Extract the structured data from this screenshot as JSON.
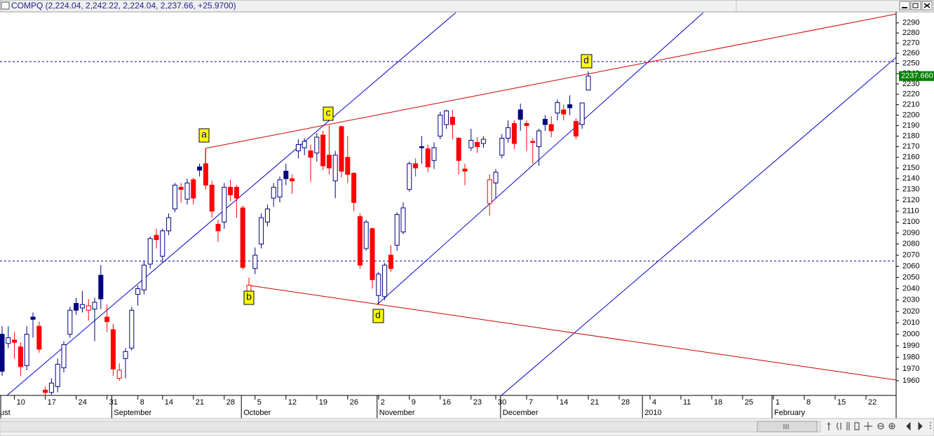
{
  "chart_data": {
    "type": "candlestick",
    "title": "COMPQ (2,224.04, 2,242.22, 2,224.04, 2,237.66, +25.9700)",
    "log_scale": true,
    "ylim": [
      1947.5,
      2301
    ],
    "yticks": [
      1960,
      1970,
      1980,
      1990,
      2000,
      2010,
      2020,
      2030,
      2040,
      2050,
      2060,
      2070,
      2080,
      2090,
      2100,
      2110,
      2120,
      2130,
      2140,
      2150,
      2160,
      2170,
      2180,
      2190,
      2200,
      2210,
      2220,
      2230,
      2240,
      2250,
      2260,
      2270,
      2280,
      2290
    ],
    "colors": {
      "rising": "#000080",
      "falling": "#ff0000",
      "hollow": "#ffffff"
    },
    "last_price": {
      "value": 2237.66,
      "label": "2237.660",
      "color": "#008000"
    },
    "annotations": [
      "a",
      "b",
      "c",
      "d",
      "d"
    ],
    "categories": [
      null,
      null,
      "10",
      null,
      null,
      null,
      null,
      "17",
      null,
      null,
      null,
      null,
      "24",
      null,
      null,
      null,
      null,
      "31",
      null,
      null,
      null,
      null,
      "8",
      null,
      null,
      null,
      "14",
      null,
      null,
      null,
      null,
      "21",
      null,
      null,
      null,
      null,
      "28",
      null,
      null,
      null,
      null,
      "5",
      null,
      null,
      null,
      null,
      "12",
      null,
      null,
      null,
      null,
      "19",
      null,
      null,
      null,
      null,
      "26",
      null,
      null,
      null,
      null,
      "2",
      null,
      null,
      null,
      null,
      "9",
      null,
      null,
      null,
      null,
      "16",
      null,
      null,
      null,
      null,
      "23",
      null,
      null,
      null,
      "30",
      null,
      null,
      null,
      null,
      "7",
      null,
      null,
      null,
      null,
      "14",
      null,
      null,
      null,
      null,
      "21",
      null,
      null,
      null,
      null,
      "28",
      null,
      null,
      null,
      null,
      "4",
      null,
      null,
      null,
      null,
      "11",
      null,
      null,
      null,
      null,
      "18",
      null,
      null,
      null,
      null,
      "25",
      null,
      null,
      null,
      null,
      "1",
      null,
      null,
      null,
      null,
      "8",
      null,
      null,
      null,
      null,
      "15",
      null,
      null,
      null,
      null,
      "22",
      null,
      null,
      null,
      null
    ],
    "months": [
      "ust",
      null,
      null,
      null,
      null,
      null,
      null,
      null,
      null,
      null,
      null,
      null,
      null,
      null,
      null,
      null,
      null,
      null,
      "September",
      null,
      null,
      null,
      null,
      null,
      null,
      null,
      null,
      null,
      null,
      null,
      null,
      null,
      null,
      null,
      null,
      null,
      null,
      null,
      null,
      "October",
      null,
      null,
      null,
      null,
      null,
      null,
      null,
      null,
      null,
      null,
      null,
      null,
      null,
      null,
      null,
      null,
      null,
      null,
      null,
      null,
      null,
      "November",
      null,
      null,
      null,
      null,
      null,
      null,
      null,
      null,
      null,
      null,
      null,
      null,
      null,
      null,
      null,
      null,
      null,
      null,
      null,
      "December",
      null,
      null,
      null,
      null,
      null,
      null,
      null,
      null,
      null,
      null,
      null,
      null,
      null,
      null,
      null,
      null,
      null,
      null,
      null,
      null,
      null,
      null,
      "2010",
      null,
      null,
      null,
      null,
      null,
      null,
      null,
      null,
      null,
      null,
      null,
      null,
      null,
      null,
      null,
      null,
      null,
      null,
      null,
      null,
      "February",
      null,
      null,
      null,
      null,
      null,
      null,
      null,
      null,
      null,
      null,
      null,
      null,
      null,
      null,
      null,
      null,
      null,
      null,
      null
    ],
    "open": [
      2000,
      1992,
      1995,
      1989,
      1973,
      2015,
      2007,
      1952,
      1950,
      1955,
      1971,
      2000,
      2027,
      2023,
      2021,
      2022,
      2052,
      2015,
      2004,
      1962,
      1979,
      1988,
      2035,
      2039,
      2062,
      2088,
      2069,
      2092,
      2112,
      2132,
      2121,
      2139,
      2151,
      2154,
      2134,
      2098,
      2100,
      2132,
      2132,
      2113,
      2037,
      2058,
      2080,
      2100,
      2122,
      2123,
      2147,
      2140,
      2166,
      2169,
      2166,
      2164,
      2181,
      2162,
      2138,
      2189,
      2160,
      2145,
      2105,
      2076,
      2094,
      2034,
      2033,
      2070,
      2079,
      2091,
      2130,
      2154,
      2170,
      2168,
      2157,
      2180,
      2191,
      2198,
      2178,
      2149,
      2169,
      2174,
      2173,
      2117,
      2136,
      2162,
      2178,
      2192,
      2205,
      2192,
      2175,
      2170,
      2196,
      2191,
      2202,
      2205,
      2210,
      2194,
      2191,
      2224.04,
      null,
      null,
      null,
      null,
      null,
      null,
      null,
      null,
      null,
      null,
      null,
      null,
      null,
      null,
      null,
      null,
      null,
      null,
      null,
      null,
      null,
      null,
      null,
      null,
      null,
      null,
      null,
      null,
      null,
      null,
      null,
      null,
      null,
      null,
      null,
      null,
      null,
      null,
      null,
      null,
      null,
      null,
      null,
      null,
      null,
      null,
      null,
      null,
      null
    ],
    "high": [
      2007,
      2007,
      2002,
      1993,
      2007,
      2019,
      2011,
      1955,
      1962,
      1979,
      1994,
      2024,
      2032,
      2038,
      2031,
      2032,
      2061,
      2026,
      2009,
      1975,
      1988,
      2024,
      2043,
      2065,
      2087,
      2094,
      2094,
      2108,
      2136,
      2136,
      2140,
      2141,
      2154,
      2168,
      2138,
      2102,
      2136,
      2139,
      2134,
      2115,
      2050,
      2077,
      2108,
      2116,
      2136,
      2142,
      2154,
      2144,
      2177,
      2178,
      2172,
      2183,
      2185,
      2190,
      2166,
      2190,
      2180,
      2146,
      2108,
      2102,
      2095,
      2055,
      2063,
      2079,
      2109,
      2118,
      2156,
      2159,
      2180,
      2172,
      2174,
      2203,
      2205,
      2205,
      2179,
      2154,
      2187,
      2179,
      2180,
      2144,
      2149,
      2182,
      2195,
      2195,
      2211,
      2195,
      2178,
      2187,
      2200,
      2199,
      2215,
      2210,
      2219,
      2197,
      2210,
      2242.22,
      null,
      null,
      null,
      null,
      null,
      null,
      null,
      null,
      null,
      null,
      null,
      null,
      null,
      null,
      null,
      null,
      null,
      null,
      null,
      null,
      null,
      null,
      null,
      null,
      null,
      null,
      null,
      null,
      null,
      null,
      null,
      null,
      null,
      null,
      null,
      null,
      null,
      null,
      null,
      null,
      null,
      null,
      null,
      null,
      null,
      null,
      null,
      null,
      null
    ],
    "low": [
      1964,
      1988,
      1979,
      1964,
      1969,
      1997,
      1984,
      1948,
      1948,
      1950,
      1967,
      1997,
      2017,
      2019,
      2012,
      1994,
      2022,
      2002,
      1964,
      1960,
      1962,
      1986,
      2025,
      2035,
      2058,
      2076,
      2063,
      2088,
      2109,
      2118,
      2116,
      2116,
      2142,
      2130,
      2104,
      2082,
      2094,
      2119,
      2104,
      2057,
      2036,
      2053,
      2076,
      2096,
      2114,
      2118,
      2134,
      2126,
      2159,
      2162,
      2137,
      2156,
      2148,
      2144,
      2122,
      2141,
      2136,
      2110,
      2058,
      2074,
      2040,
      2026,
      2030,
      2055,
      2074,
      2089,
      2128,
      2142,
      2154,
      2146,
      2149,
      2177,
      2187,
      2177,
      2144,
      2134,
      2166,
      2164,
      2169,
      2106,
      2122,
      2159,
      2174,
      2168,
      2185,
      2166,
      2154,
      2152,
      2185,
      2179,
      2195,
      2195,
      2200,
      2177,
      2187,
      2224.04,
      null,
      null,
      null,
      null,
      null,
      null,
      null,
      null,
      null,
      null,
      null,
      null,
      null,
      null,
      null,
      null,
      null,
      null,
      null,
      null,
      null,
      null,
      null,
      null,
      null,
      null,
      null,
      null,
      null,
      null,
      null,
      null,
      null,
      null,
      null,
      null,
      null,
      null,
      null,
      null,
      null,
      null,
      null,
      null,
      null,
      null,
      null,
      null,
      null
    ],
    "close": [
      1968,
      1997,
      1993,
      1972,
      2000,
      2013,
      1987,
      1950,
      1958,
      1974,
      1991,
      2021,
      2021,
      2026,
      2025,
      2028,
      2031,
      2011,
      1970,
      1969,
      1985,
      2021,
      2040,
      2061,
      2085,
      2084,
      2092,
      2104,
      2134,
      2130,
      2136,
      2122,
      2148,
      2134,
      2110,
      2092,
      2132,
      2125,
      2122,
      2059,
      2043,
      2070,
      2104,
      2112,
      2132,
      2139,
      2140,
      2138,
      2172,
      2175,
      2160,
      2179,
      2152,
      2150,
      2162,
      2147,
      2144,
      2118,
      2061,
      2100,
      2048,
      2053,
      2061,
      2058,
      2107,
      2113,
      2154,
      2150,
      2169,
      2151,
      2169,
      2200,
      2204,
      2191,
      2157,
      2147,
      2176,
      2170,
      2177,
      2139,
      2146,
      2178,
      2188,
      2173,
      2196,
      2190,
      2174,
      2185,
      2191,
      2185,
      2212,
      2201,
      2207,
      2180,
      2211.69,
      2237.66,
      null,
      null,
      null,
      null,
      null,
      null,
      null,
      null,
      null,
      null,
      null,
      null,
      null,
      null,
      null,
      null,
      null,
      null,
      null,
      null,
      null,
      null,
      null,
      null,
      null,
      null,
      null,
      null,
      null,
      null,
      null,
      null,
      null,
      null,
      null,
      null,
      null,
      null,
      null,
      null,
      null,
      null,
      null,
      null,
      null,
      null,
      null,
      null,
      null
    ]
  }
}
